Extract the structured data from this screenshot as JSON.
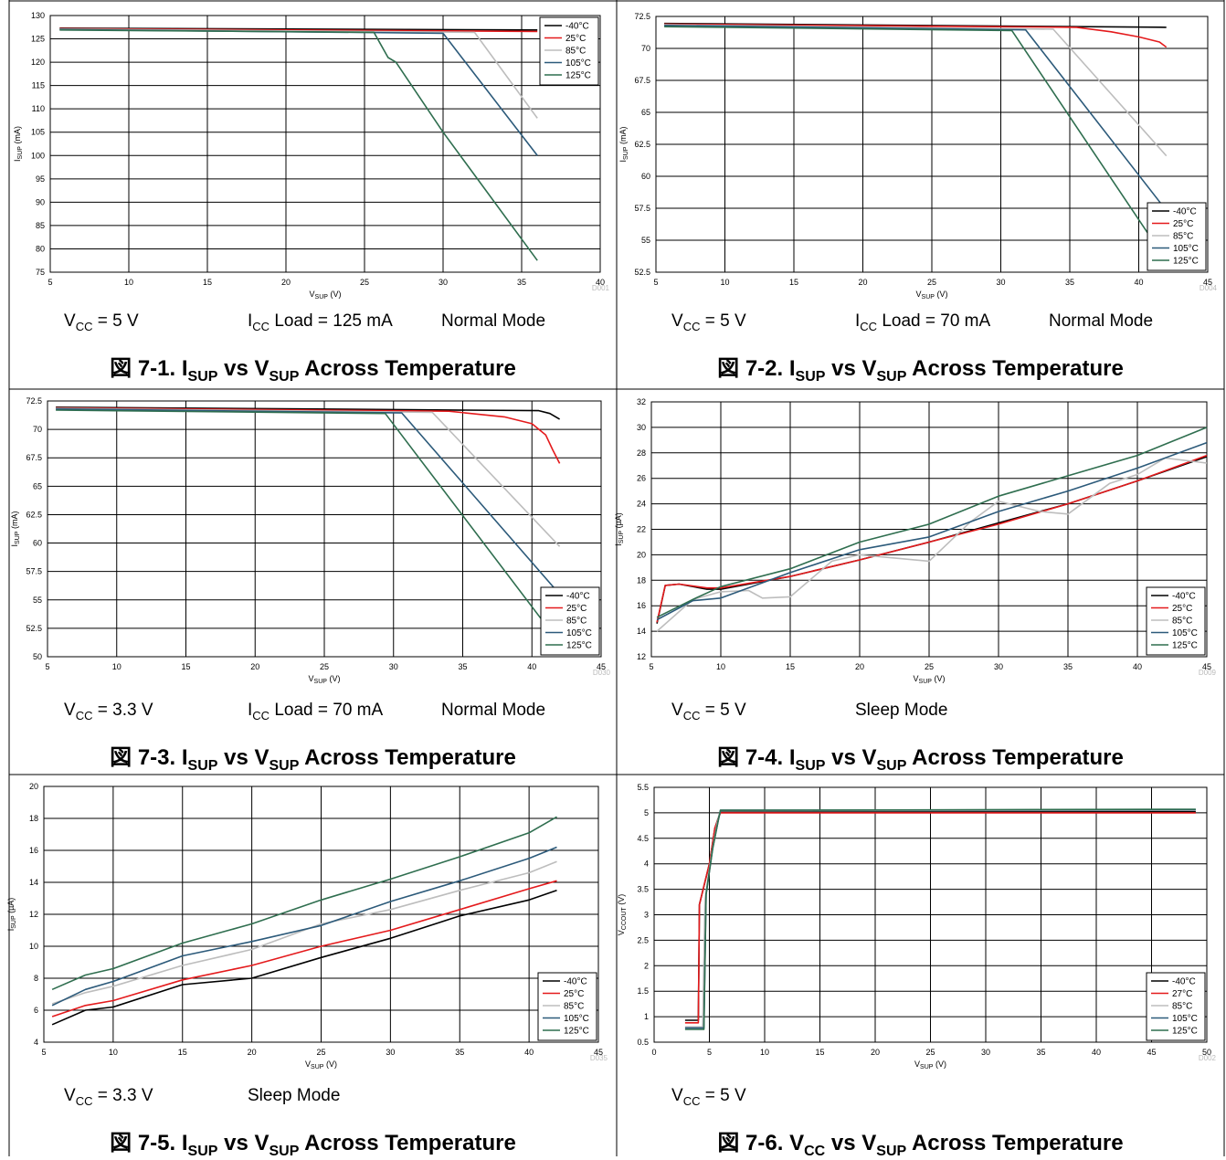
{
  "colors": {
    "-40°C": "#000000",
    "25°C": "#e41a1c",
    "27°C": "#e41a1c",
    "85°C": "#bdbdbd",
    "105°C": "#2c5a7a",
    "125°C": "#2f6e4f"
  },
  "charts": [
    {
      "fig_no": "図 7-1.",
      "cap_a": "I",
      "cap_a_sub": "SUP",
      "cap_b": " vs V",
      "cap_b_sub": "SUP",
      "cap_rest": " Across Temperature",
      "xlabel_main": "V",
      "xlabel_sub": "SUP",
      "xlabel_unit": " (V)",
      "ylabel_main": "I",
      "ylabel_sub": "SUP",
      "ylabel_unit": " (mA)",
      "code": "D001",
      "cond1": "V",
      "cond1_sub": "CC",
      "cond1_rest": " = 5 V",
      "cond2": "I",
      "cond2_sub": "CC",
      "cond2_rest": " Load = 125 mA",
      "cond3": "Normal Mode"
    },
    {
      "fig_no": "図 7-2.",
      "cap_a": "I",
      "cap_a_sub": "SUP",
      "cap_b": " vs V",
      "cap_b_sub": "SUP",
      "cap_rest": " Across Temperature",
      "xlabel_main": "V",
      "xlabel_sub": "SUP",
      "xlabel_unit": " (V)",
      "ylabel_main": "I",
      "ylabel_sub": "SUP",
      "ylabel_unit": " (mA)",
      "code": "D004",
      "cond1": "V",
      "cond1_sub": "CC",
      "cond1_rest": " = 5 V",
      "cond2": "I",
      "cond2_sub": "CC",
      "cond2_rest": " Load = 70 mA",
      "cond3": "Normal Mode"
    },
    {
      "fig_no": "図 7-3.",
      "cap_a": "I",
      "cap_a_sub": "SUP",
      "cap_b": " vs V",
      "cap_b_sub": "SUP",
      "cap_rest": " Across Temperature",
      "xlabel_main": "V",
      "xlabel_sub": "SUP",
      "xlabel_unit": " (V)",
      "ylabel_main": "I",
      "ylabel_sub": "SUP",
      "ylabel_unit": " (mA)",
      "code": "D030",
      "cond1": "V",
      "cond1_sub": "CC",
      "cond1_rest": " = 3.3 V",
      "cond2": "I",
      "cond2_sub": "CC",
      "cond2_rest": " Load = 70 mA",
      "cond3": "Normal Mode"
    },
    {
      "fig_no": "図 7-4.",
      "cap_a": "I",
      "cap_a_sub": "SUP",
      "cap_b": " vs V",
      "cap_b_sub": "SUP",
      "cap_rest": " Across Temperature",
      "xlabel_main": "V",
      "xlabel_sub": "SUP",
      "xlabel_unit": " (V)",
      "ylabel_main": "I",
      "ylabel_sub": "SUP",
      "ylabel_unit": " (µA)",
      "code": "D009",
      "cond1": "V",
      "cond1_sub": "CC",
      "cond1_rest": " = 5 V",
      "cond2": "",
      "cond2_sub": "",
      "cond2_rest": "",
      "cond3": "Sleep Mode"
    },
    {
      "fig_no": "図 7-5.",
      "cap_a": "I",
      "cap_a_sub": "SUP",
      "cap_b": " vs V",
      "cap_b_sub": "SUP",
      "cap_rest": " Across Temperature",
      "xlabel_main": "V",
      "xlabel_sub": "SUP",
      "xlabel_unit": " (V)",
      "ylabel_main": "I",
      "ylabel_sub": "SUP",
      "ylabel_unit": " (µA)",
      "code": "D035",
      "cond1": "V",
      "cond1_sub": "CC",
      "cond1_rest": " = 3.3 V",
      "cond2": "",
      "cond2_sub": "",
      "cond2_rest": "",
      "cond3": "Sleep Mode"
    },
    {
      "fig_no": "図 7-6.",
      "cap_a": "V",
      "cap_a_sub": "CC",
      "cap_b": " vs V",
      "cap_b_sub": "SUP",
      "cap_rest": " Across Temperature",
      "xlabel_main": "V",
      "xlabel_sub": "SUP",
      "xlabel_unit": " (V)",
      "ylabel_main": "V",
      "ylabel_sub": "CCOUT",
      "ylabel_unit": " (V)",
      "code": "D002",
      "cond1": "V",
      "cond1_sub": "CC",
      "cond1_rest": " = 5 V",
      "cond2": "",
      "cond2_sub": "",
      "cond2_rest": "",
      "cond3": ""
    }
  ],
  "chart_data": [
    {
      "type": "line",
      "xlim": [
        5,
        40
      ],
      "xticks": [
        5,
        10,
        15,
        20,
        25,
        30,
        35,
        40
      ],
      "ylim": [
        75,
        130
      ],
      "yticks": [
        75,
        80,
        85,
        90,
        95,
        100,
        105,
        110,
        115,
        120,
        125,
        130
      ],
      "legend": "top-right",
      "series": [
        {
          "name": "-40°C",
          "x": [
            5.6,
            36
          ],
          "y": [
            127.3,
            126.9
          ]
        },
        {
          "name": "25°C",
          "x": [
            5.6,
            36
          ],
          "y": [
            127.2,
            126.6
          ]
        },
        {
          "name": "85°C",
          "x": [
            5.6,
            32,
            36
          ],
          "y": [
            127.1,
            126.4,
            108
          ]
        },
        {
          "name": "105°C",
          "x": [
            5.6,
            30,
            36
          ],
          "y": [
            127.0,
            126.2,
            100
          ]
        },
        {
          "name": "125°C",
          "x": [
            5.6,
            25.6,
            26,
            26.5,
            27,
            30,
            36
          ],
          "y": [
            126.9,
            126.4,
            124,
            121,
            120,
            105,
            77.5
          ]
        }
      ]
    },
    {
      "type": "line",
      "xlim": [
        5,
        45
      ],
      "xticks": [
        5,
        10,
        15,
        20,
        25,
        30,
        35,
        40,
        45
      ],
      "ylim": [
        52.5,
        72.5
      ],
      "yticks": [
        52.5,
        55,
        57.5,
        60,
        62.5,
        65,
        67.5,
        70,
        72.5
      ],
      "legend": "bottom-right",
      "series": [
        {
          "name": "-40°C",
          "x": [
            5.6,
            42
          ],
          "y": [
            71.95,
            71.65
          ]
        },
        {
          "name": "25°C",
          "x": [
            5.6,
            35.5,
            38,
            40,
            41.5,
            42
          ],
          "y": [
            71.9,
            71.65,
            71.3,
            70.9,
            70.5,
            70.1
          ]
        },
        {
          "name": "85°C",
          "x": [
            5.6,
            33.8,
            42
          ],
          "y": [
            71.85,
            71.5,
            61.6
          ]
        },
        {
          "name": "105°C",
          "x": [
            5.6,
            31.8,
            41.8
          ],
          "y": [
            71.8,
            71.45,
            57.6
          ]
        },
        {
          "name": "125°C",
          "x": [
            5.6,
            30.8,
            41
          ],
          "y": [
            71.7,
            71.4,
            55.0
          ]
        }
      ]
    },
    {
      "type": "line",
      "xlim": [
        5,
        45
      ],
      "xticks": [
        5,
        10,
        15,
        20,
        25,
        30,
        35,
        40,
        45
      ],
      "ylim": [
        50,
        72.5
      ],
      "yticks": [
        50,
        52.5,
        55,
        57.5,
        60,
        62.5,
        65,
        67.5,
        70,
        72.5
      ],
      "legend": "bottom-right",
      "series": [
        {
          "name": "-40°C",
          "x": [
            5.6,
            40.5,
            41.3,
            42
          ],
          "y": [
            71.95,
            71.65,
            71.4,
            70.9
          ]
        },
        {
          "name": "25°C",
          "x": [
            5.6,
            34,
            38,
            40,
            41,
            41.5,
            42
          ],
          "y": [
            71.9,
            71.6,
            71.1,
            70.5,
            69.5,
            68.2,
            67.0
          ]
        },
        {
          "name": "85°C",
          "x": [
            5.6,
            32.8,
            42
          ],
          "y": [
            71.85,
            71.5,
            59.7
          ]
        },
        {
          "name": "105°C",
          "x": [
            5.6,
            30.6,
            42
          ],
          "y": [
            71.8,
            71.45,
            55.5
          ]
        },
        {
          "name": "125°C",
          "x": [
            5.6,
            29.4,
            41
          ],
          "y": [
            71.7,
            71.4,
            52.8
          ]
        }
      ]
    },
    {
      "type": "line",
      "xlim": [
        5,
        45
      ],
      "xticks": [
        5,
        10,
        15,
        20,
        25,
        30,
        35,
        40,
        45
      ],
      "ylim": [
        12,
        32
      ],
      "yticks": [
        12,
        14,
        16,
        18,
        20,
        22,
        24,
        26,
        28,
        30,
        32
      ],
      "legend": "bottom-right",
      "series": [
        {
          "name": "-40°C",
          "x": [
            5.4,
            6,
            7,
            9,
            10,
            15,
            20,
            25,
            30,
            35,
            40,
            45
          ],
          "y": [
            14.6,
            17.6,
            17.7,
            17.3,
            17.3,
            18.3,
            19.6,
            21,
            22.5,
            24,
            25.8,
            27.7
          ]
        },
        {
          "name": "25°C",
          "x": [
            5.4,
            6,
            7,
            9,
            10,
            15,
            20,
            25,
            30,
            35,
            40,
            45
          ],
          "y": [
            14.7,
            17.6,
            17.7,
            17.4,
            17.4,
            18.3,
            19.6,
            21,
            22.4,
            24,
            25.8,
            27.8
          ]
        },
        {
          "name": "85°C",
          "x": [
            5.4,
            8,
            10,
            12,
            13,
            15,
            18,
            20,
            25,
            28,
            30,
            33,
            35,
            38,
            40,
            42,
            45
          ],
          "y": [
            14,
            16.5,
            17.1,
            17.2,
            16.6,
            16.7,
            19.5,
            20,
            19.5,
            22.6,
            24.2,
            23.4,
            23.2,
            25.6,
            26.3,
            27.6,
            27.2
          ]
        },
        {
          "name": "105°C",
          "x": [
            5.4,
            8,
            10,
            15,
            20,
            25,
            30,
            35,
            40,
            45
          ],
          "y": [
            14.9,
            16.4,
            16.6,
            18.6,
            20.4,
            21.4,
            23.4,
            25,
            26.8,
            28.8
          ]
        },
        {
          "name": "125°C",
          "x": [
            5.4,
            8,
            10,
            15,
            20,
            25,
            30,
            35,
            40,
            45
          ],
          "y": [
            15.1,
            16.5,
            17.5,
            18.9,
            21,
            22.4,
            24.6,
            26.2,
            27.8,
            30
          ]
        }
      ]
    },
    {
      "type": "line",
      "xlim": [
        5,
        45
      ],
      "xticks": [
        5,
        10,
        15,
        20,
        25,
        30,
        35,
        40,
        45
      ],
      "ylim": [
        4,
        20
      ],
      "yticks": [
        4,
        6,
        8,
        10,
        12,
        14,
        16,
        18,
        20
      ],
      "legend": "bottom-right",
      "series": [
        {
          "name": "-40°C",
          "x": [
            5.6,
            8,
            10,
            15,
            20,
            25,
            30,
            35,
            40,
            42
          ],
          "y": [
            5.1,
            6.0,
            6.2,
            7.6,
            8.0,
            9.3,
            10.5,
            11.9,
            12.9,
            13.5
          ]
        },
        {
          "name": "25°C",
          "x": [
            5.6,
            8,
            10,
            15,
            20,
            25,
            30,
            35,
            40,
            42
          ],
          "y": [
            5.6,
            6.3,
            6.6,
            7.9,
            8.8,
            10.0,
            11.0,
            12.3,
            13.6,
            14.1
          ]
        },
        {
          "name": "85°C",
          "x": [
            5.6,
            8,
            10,
            15,
            20,
            25,
            30,
            35,
            40,
            42
          ],
          "y": [
            6.4,
            7.1,
            7.5,
            8.8,
            9.8,
            11.4,
            12.3,
            13.5,
            14.6,
            15.3
          ]
        },
        {
          "name": "105°C",
          "x": [
            5.6,
            8,
            10,
            15,
            20,
            25,
            30,
            35,
            40,
            42
          ],
          "y": [
            6.3,
            7.3,
            7.8,
            9.4,
            10.3,
            11.3,
            12.8,
            14.1,
            15.5,
            16.2
          ]
        },
        {
          "name": "125°C",
          "x": [
            5.6,
            8,
            10,
            15,
            20,
            25,
            30,
            35,
            40,
            42
          ],
          "y": [
            7.3,
            8.2,
            8.6,
            10.2,
            11.4,
            12.9,
            14.2,
            15.6,
            17.1,
            18.1
          ]
        }
      ]
    },
    {
      "type": "line",
      "xlim": [
        0,
        50
      ],
      "xticks": [
        0,
        5,
        10,
        15,
        20,
        25,
        30,
        35,
        40,
        45,
        50
      ],
      "ylim": [
        0.5,
        5.5
      ],
      "yticks": [
        0.5,
        1,
        1.5,
        2,
        2.5,
        3,
        3.5,
        4,
        4.5,
        5,
        5.5
      ],
      "legend": "bottom-right",
      "series": [
        {
          "name": "-40°C",
          "x": [
            2.8,
            4.0,
            4.1,
            5.0,
            5.5,
            6,
            49
          ],
          "y": [
            0.93,
            0.93,
            3.2,
            4.0,
            4.7,
            5.02,
            5.02
          ]
        },
        {
          "name": "27°C",
          "x": [
            2.8,
            4.0,
            4.1,
            5.0,
            5.5,
            6,
            49
          ],
          "y": [
            0.88,
            0.88,
            3.2,
            4.0,
            4.7,
            5.0,
            5.0
          ]
        },
        {
          "name": "85°C",
          "x": [
            2.8,
            4.4,
            4.6,
            5.2,
            5.7,
            6,
            49
          ],
          "y": [
            0.8,
            0.8,
            3.3,
            4.2,
            4.8,
            5.04,
            5.05
          ]
        },
        {
          "name": "105°C",
          "x": [
            2.8,
            4.5,
            4.7,
            5.3,
            5.8,
            6,
            49
          ],
          "y": [
            0.78,
            0.78,
            3.4,
            4.3,
            4.85,
            5.05,
            5.06
          ]
        },
        {
          "name": "125°C",
          "x": [
            2.8,
            4.5,
            4.7,
            5.3,
            5.8,
            6,
            49
          ],
          "y": [
            0.75,
            0.75,
            3.4,
            4.3,
            4.85,
            5.05,
            5.07
          ]
        }
      ]
    }
  ]
}
